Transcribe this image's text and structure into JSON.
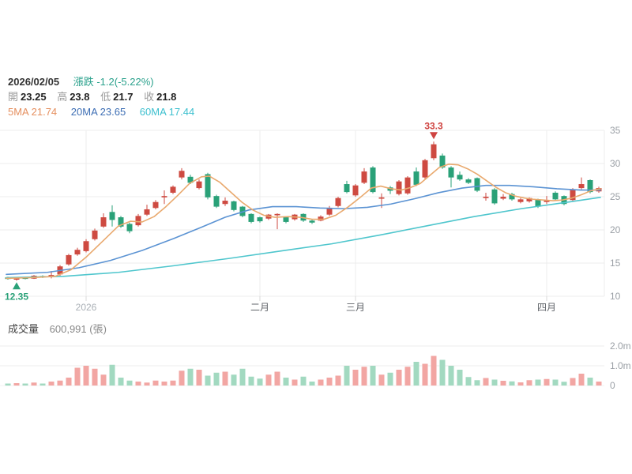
{
  "header": {
    "date": "2026/02/05",
    "change_label": "漲跌",
    "change_value": "-1.2(-5.22%)",
    "open_label": "開",
    "open": "23.25",
    "high_label": "高",
    "high": "23.8",
    "low_label": "低",
    "low": "21.7",
    "close_label": "收",
    "close": "21.8",
    "ma5_text": "5MA 21.74",
    "ma20_text": "20MA 23.65",
    "ma60_text": "60MA 17.44"
  },
  "volume_header": {
    "title": "成交量",
    "value": "600,991 (張)"
  },
  "chart_data": {
    "type": "candlestick_with_volume",
    "price_axis": {
      "ticks": [
        35,
        30,
        25,
        20,
        15,
        10
      ],
      "range": [
        10,
        35
      ],
      "side": "right"
    },
    "volume_axis": {
      "ticks": [
        {
          "label": "2.0m",
          "value": 2.0
        },
        {
          "label": "1.0m",
          "value": 1.0
        },
        {
          "label": "0",
          "value": 0
        }
      ]
    },
    "x_axis_labels": [
      {
        "label": "2026",
        "index": 9,
        "muted": true
      },
      {
        "label": "二月",
        "index": 29,
        "muted": false
      },
      {
        "label": "三月",
        "index": 40,
        "muted": false
      },
      {
        "label": "四月",
        "index": 62,
        "muted": false
      }
    ],
    "annotations": {
      "highest": {
        "text": "33.3",
        "candle_index": 49
      },
      "lowest": {
        "text": "12.35",
        "candle_index": 1
      }
    },
    "colors": {
      "up": "#ce4a41",
      "down": "#2aa178",
      "vol_up": "#f2a6a3",
      "vol_down": "#a2d9c0",
      "ma5": "#e9a96e",
      "ma20": "#5b93d3",
      "ma60": "#4fc6cd",
      "grid": "#ececec",
      "axis_text": "#9ba0a6",
      "month_text": "#5f6368",
      "annotation_high": "#cf4441",
      "annotation_low": "#2aa178"
    },
    "candles_ohlc": [
      [
        12.85,
        12.95,
        12.5,
        12.6
      ],
      [
        12.5,
        12.9,
        12.35,
        12.75
      ],
      [
        12.75,
        12.85,
        12.55,
        12.65
      ],
      [
        12.65,
        13.2,
        12.6,
        13.1
      ],
      [
        13.05,
        13.15,
        12.75,
        12.85
      ],
      [
        12.9,
        13.8,
        12.7,
        13.2
      ],
      [
        13.3,
        14.7,
        13.1,
        14.5
      ],
      [
        14.8,
        16.4,
        14.6,
        16.2
      ],
      [
        16.3,
        17.3,
        16.1,
        17.0
      ],
      [
        16.8,
        18.6,
        16.6,
        18.3
      ],
      [
        18.6,
        20.2,
        18.4,
        19.9
      ],
      [
        20.5,
        22.5,
        20.3,
        21.9
      ],
      [
        22.7,
        23.7,
        20.5,
        21.5
      ],
      [
        21.9,
        22.1,
        20.3,
        20.5
      ],
      [
        20.9,
        21.1,
        19.5,
        19.8
      ],
      [
        20.7,
        22.4,
        20.5,
        22.1
      ],
      [
        22.3,
        23.8,
        22.1,
        23.1
      ],
      [
        23.3,
        24.5,
        23.1,
        24.2
      ],
      [
        24.9,
        25.95,
        23.9,
        25.1
      ],
      [
        25.6,
        26.7,
        25.4,
        26.5
      ],
      [
        27.9,
        29.3,
        27.6,
        28.9
      ],
      [
        28.0,
        28.3,
        26.9,
        27.1
      ],
      [
        26.3,
        27.6,
        26.1,
        27.3
      ],
      [
        28.4,
        28.6,
        24.6,
        24.9
      ],
      [
        25.1,
        25.3,
        23.3,
        23.5
      ],
      [
        23.9,
        24.9,
        23.6,
        24.4
      ],
      [
        24.3,
        24.4,
        22.8,
        23.0
      ],
      [
        23.5,
        23.6,
        21.9,
        22.1
      ],
      [
        22.4,
        22.5,
        21.0,
        21.2
      ],
      [
        21.9,
        22.0,
        21.1,
        21.3
      ],
      [
        21.7,
        22.4,
        21.5,
        22.3
      ],
      [
        22.2,
        22.5,
        20.1,
        22.4
      ],
      [
        21.9,
        22.0,
        21.0,
        21.2
      ],
      [
        21.6,
        22.4,
        21.4,
        22.3
      ],
      [
        22.4,
        22.5,
        21.2,
        21.4
      ],
      [
        21.4,
        21.6,
        20.9,
        21.1
      ],
      [
        21.4,
        22.2,
        21.3,
        22.0
      ],
      [
        22.3,
        23.6,
        22.1,
        23.3
      ],
      [
        23.6,
        25.0,
        23.4,
        24.8
      ],
      [
        26.9,
        27.4,
        25.5,
        25.7
      ],
      [
        25.2,
        26.9,
        25.0,
        26.7
      ],
      [
        27.1,
        29.3,
        26.9,
        28.8
      ],
      [
        29.4,
        29.6,
        25.5,
        25.7
      ],
      [
        24.7,
        25.5,
        23.3,
        24.9
      ],
      [
        26.4,
        26.6,
        25.4,
        25.9
      ],
      [
        25.4,
        27.5,
        25.2,
        27.3
      ],
      [
        25.5,
        28.1,
        25.3,
        27.9
      ],
      [
        28.8,
        29.4,
        26.6,
        26.8
      ],
      [
        27.9,
        30.7,
        27.7,
        30.5
      ],
      [
        30.8,
        33.3,
        30.5,
        32.9
      ],
      [
        31.2,
        31.5,
        29.2,
        29.4
      ],
      [
        29.4,
        29.6,
        26.4,
        27.9
      ],
      [
        28.3,
        28.8,
        27.4,
        27.6
      ],
      [
        27.6,
        27.8,
        26.9,
        27.1
      ],
      [
        27.8,
        27.9,
        25.7,
        25.9
      ],
      [
        24.8,
        25.6,
        24.4,
        25.0
      ],
      [
        26.1,
        26.3,
        23.8,
        24.0
      ],
      [
        24.7,
        25.4,
        24.5,
        25.0
      ],
      [
        25.4,
        25.6,
        24.4,
        24.6
      ],
      [
        24.2,
        24.8,
        24.0,
        24.6
      ],
      [
        24.3,
        24.9,
        24.1,
        24.8
      ],
      [
        24.6,
        24.7,
        23.3,
        23.5
      ],
      [
        24.2,
        25.1,
        23.9,
        24.5
      ],
      [
        25.6,
        25.8,
        24.4,
        24.6
      ],
      [
        25.1,
        25.2,
        23.7,
        23.9
      ],
      [
        24.5,
        26.3,
        24.3,
        26.1
      ],
      [
        26.3,
        27.9,
        26.1,
        26.9
      ],
      [
        27.5,
        27.6,
        25.5,
        25.7
      ],
      [
        25.8,
        26.5,
        25.6,
        26.3
      ]
    ],
    "volumes_millions": [
      0.1,
      0.12,
      0.1,
      0.15,
      0.1,
      0.2,
      0.25,
      0.4,
      0.9,
      1.0,
      0.85,
      0.55,
      1.05,
      0.4,
      0.25,
      0.2,
      0.15,
      0.25,
      0.2,
      0.25,
      0.75,
      0.85,
      0.8,
      0.5,
      0.65,
      0.7,
      0.55,
      0.85,
      0.45,
      0.35,
      0.55,
      0.7,
      0.4,
      0.3,
      0.45,
      0.2,
      0.3,
      0.4,
      0.5,
      1.0,
      0.8,
      0.95,
      1.0,
      0.55,
      0.65,
      0.8,
      0.95,
      1.2,
      1.1,
      1.5,
      1.3,
      1.0,
      0.8,
      0.43,
      0.27,
      0.38,
      0.3,
      0.24,
      0.21,
      0.16,
      0.27,
      0.3,
      0.33,
      0.3,
      0.19,
      0.38,
      0.6,
      0.4,
      0.2
    ],
    "ma5_points": [
      [
        8,
        12.7
      ],
      [
        40,
        12.8
      ],
      [
        70,
        13.0
      ],
      [
        90,
        14.0
      ],
      [
        110,
        16.0
      ],
      [
        130,
        18.3
      ],
      [
        150,
        20.6
      ],
      [
        165,
        21.3
      ],
      [
        180,
        21.2
      ],
      [
        195,
        22.0
      ],
      [
        210,
        23.5
      ],
      [
        225,
        25.2
      ],
      [
        240,
        27.0
      ],
      [
        255,
        28.0
      ],
      [
        265,
        28.1
      ],
      [
        278,
        27.2
      ],
      [
        292,
        25.7
      ],
      [
        306,
        24.2
      ],
      [
        320,
        23.0
      ],
      [
        334,
        22.2
      ],
      [
        348,
        21.9
      ],
      [
        365,
        22.0
      ],
      [
        380,
        21.9
      ],
      [
        395,
        21.6
      ],
      [
        410,
        21.6
      ],
      [
        425,
        22.2
      ],
      [
        440,
        23.4
      ],
      [
        455,
        24.8
      ],
      [
        470,
        26.3
      ],
      [
        482,
        26.6
      ],
      [
        495,
        26.2
      ],
      [
        508,
        26.0
      ],
      [
        520,
        26.4
      ],
      [
        532,
        27.0
      ],
      [
        544,
        28.2
      ],
      [
        556,
        29.4
      ],
      [
        568,
        29.9
      ],
      [
        580,
        29.8
      ],
      [
        592,
        29.2
      ],
      [
        604,
        28.4
      ],
      [
        616,
        27.4
      ],
      [
        628,
        26.4
      ],
      [
        640,
        25.6
      ],
      [
        652,
        25.1
      ],
      [
        664,
        24.8
      ],
      [
        676,
        24.6
      ],
      [
        688,
        24.5
      ],
      [
        700,
        24.4
      ],
      [
        712,
        24.5
      ],
      [
        724,
        24.8
      ],
      [
        736,
        25.3
      ],
      [
        748,
        25.9
      ],
      [
        760,
        26.2
      ]
    ],
    "ma20_points": [
      [
        8,
        13.3
      ],
      [
        60,
        13.6
      ],
      [
        100,
        14.3
      ],
      [
        140,
        15.4
      ],
      [
        180,
        16.9
      ],
      [
        220,
        18.7
      ],
      [
        255,
        20.4
      ],
      [
        285,
        21.9
      ],
      [
        315,
        23.0
      ],
      [
        345,
        23.5
      ],
      [
        375,
        23.5
      ],
      [
        405,
        23.3
      ],
      [
        435,
        23.2
      ],
      [
        465,
        23.4
      ],
      [
        495,
        23.9
      ],
      [
        525,
        24.7
      ],
      [
        555,
        25.6
      ],
      [
        585,
        26.3
      ],
      [
        615,
        26.7
      ],
      [
        645,
        26.7
      ],
      [
        675,
        26.5
      ],
      [
        705,
        26.2
      ],
      [
        735,
        26.0
      ],
      [
        760,
        26.0
      ]
    ],
    "ma60_points": [
      [
        8,
        12.8
      ],
      [
        80,
        13.0
      ],
      [
        150,
        13.6
      ],
      [
        220,
        14.6
      ],
      [
        290,
        15.7
      ],
      [
        360,
        16.9
      ],
      [
        420,
        17.9
      ],
      [
        480,
        19.2
      ],
      [
        540,
        20.6
      ],
      [
        600,
        22.0
      ],
      [
        660,
        23.2
      ],
      [
        720,
        24.2
      ],
      [
        760,
        24.9
      ]
    ]
  }
}
